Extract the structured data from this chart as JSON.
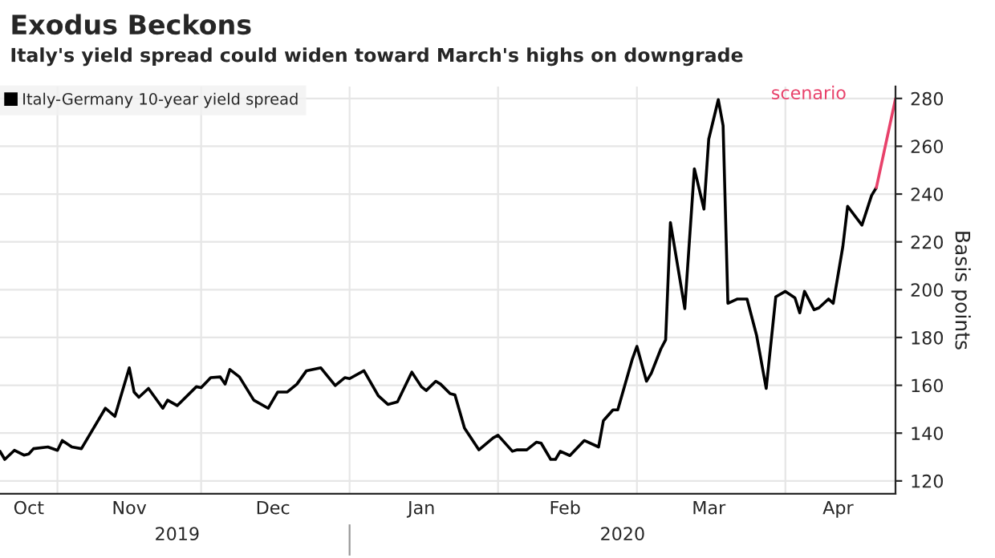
{
  "chart_data": {
    "type": "line",
    "title": "Exodus Beckons",
    "subtitle": "Italy's yield spread could widen toward March's highs on downgrade",
    "ylabel": "Basis points",
    "xlim": [
      "2019-10-20",
      "2020-04-24"
    ],
    "ylim": [
      114.6,
      285
    ],
    "yticks": [
      120,
      140,
      160,
      180,
      200,
      220,
      240,
      260,
      280
    ],
    "xticks": [
      {
        "value": "2019-11-01",
        "label": null
      },
      {
        "value": "2019-12-01",
        "label": null
      },
      {
        "value": "2020-01-01",
        "label": null
      },
      {
        "value": "2020-02-01",
        "label": null
      },
      {
        "value": "2020-03-01",
        "label": null
      },
      {
        "value": "2020-04-01",
        "label": null
      },
      {
        "value": "2019-10-26",
        "label": "Oct"
      },
      {
        "value": "2019-11-16",
        "label": "Nov"
      },
      {
        "value": "2019-12-16",
        "label": "Dec"
      },
      {
        "value": "2020-01-16",
        "label": "Jan"
      },
      {
        "value": "2020-02-15",
        "label": "Feb"
      },
      {
        "value": "2020-03-16",
        "label": "Mar"
      },
      {
        "value": "2020-04-12",
        "label": "Apr"
      }
    ],
    "x2lim": [
      "2019-10-20",
      "2020-04-24"
    ],
    "x2ticks": [
      {
        "value": "2019-11-26",
        "label": "2019"
      },
      {
        "value": "2020-01-01",
        "label": null
      },
      {
        "value": "2020-02-27",
        "label": "2020"
      }
    ],
    "grid": true,
    "legend": "top left",
    "line_style": "solid",
    "marker": "none",
    "series": [
      {
        "name": "Italy-Germany 10-year yield spread",
        "color": "#000000",
        "x": [
          "2019-10-20",
          "2019-10-21",
          "2019-10-23",
          "2019-10-25",
          "2019-10-26",
          "2019-10-27",
          "2019-10-30",
          "2019-11-01",
          "2019-11-02",
          "2019-11-04",
          "2019-11-06",
          "2019-11-11",
          "2019-11-13",
          "2019-11-14",
          "2019-11-16",
          "2019-11-17",
          "2019-11-18",
          "2019-11-20",
          "2019-11-23",
          "2019-11-24",
          "2019-11-26",
          "2019-11-30",
          "2019-12-01",
          "2019-12-03",
          "2019-12-05",
          "2019-12-06",
          "2019-12-07",
          "2019-12-09",
          "2019-12-12",
          "2019-12-15",
          "2019-12-17",
          "2019-12-19",
          "2019-12-21",
          "2019-12-23",
          "2019-12-26",
          "2019-12-29",
          "2019-12-31",
          "2020-01-01",
          "2020-01-04",
          "2020-01-07",
          "2020-01-09",
          "2020-01-11",
          "2020-01-14",
          "2020-01-16",
          "2020-01-17",
          "2020-01-19",
          "2020-01-20",
          "2020-01-22",
          "2020-01-23",
          "2020-01-25",
          "2020-01-28",
          "2020-01-31",
          "2020-02-01",
          "2020-02-04",
          "2020-02-05",
          "2020-02-07",
          "2020-02-09",
          "2020-02-10",
          "2020-02-12",
          "2020-02-13",
          "2020-02-14",
          "2020-02-16",
          "2020-02-19",
          "2020-02-22",
          "2020-02-23",
          "2020-02-25",
          "2020-02-26",
          "2020-02-29",
          "2020-03-01",
          "2020-03-03",
          "2020-03-04",
          "2020-03-06",
          "2020-03-07",
          "2020-03-08",
          "2020-03-11",
          "2020-03-13",
          "2020-03-15",
          "2020-03-16",
          "2020-03-18",
          "2020-03-19",
          "2020-03-20",
          "2020-03-22",
          "2020-03-24",
          "2020-03-26",
          "2020-03-28",
          "2020-03-30",
          "2020-04-01",
          "2020-04-03",
          "2020-04-04",
          "2020-04-05",
          "2020-04-07",
          "2020-04-08",
          "2020-04-10",
          "2020-04-11",
          "2020-04-13",
          "2020-04-14",
          "2020-04-17",
          "2020-04-19",
          "2020-04-20"
        ],
        "values": [
          132.4,
          129,
          132.8,
          130.8,
          131.3,
          133.5,
          134.2,
          132.8,
          136.9,
          134.2,
          133.5,
          150.4,
          147,
          153.8,
          167.3,
          157.2,
          155,
          158.7,
          150.4,
          153.8,
          151.5,
          159.4,
          159,
          163.2,
          163.5,
          160.5,
          166.6,
          163.5,
          153.8,
          150.4,
          157.2,
          157.2,
          160.5,
          166.1,
          167.3,
          159.9,
          163.2,
          162.8,
          166.1,
          155.6,
          152,
          153.1,
          165.5,
          159.4,
          157.8,
          161.7,
          160.5,
          156.5,
          156,
          142.1,
          133,
          138,
          139.1,
          132.4,
          133,
          133,
          136.2,
          135.8,
          129,
          129,
          132.4,
          130.6,
          136.9,
          134.2,
          145.2,
          149.7,
          149.7,
          170.7,
          176.3,
          161.7,
          165,
          175.2,
          179,
          228.1,
          192.1,
          250.6,
          233.7,
          263,
          279.5,
          268.6,
          194.3,
          196.1,
          196.1,
          180.8,
          158.7,
          197,
          199.3,
          196.6,
          190.3,
          199.3,
          191.6,
          192.4,
          196.1,
          194.3,
          218,
          234.9,
          227,
          239.4,
          242.7
        ]
      },
      {
        "name": "scenario",
        "color": "#e8416a",
        "x": [
          "2020-04-20",
          "2020-04-24"
        ],
        "values": [
          242.7,
          279.9
        ]
      }
    ]
  }
}
